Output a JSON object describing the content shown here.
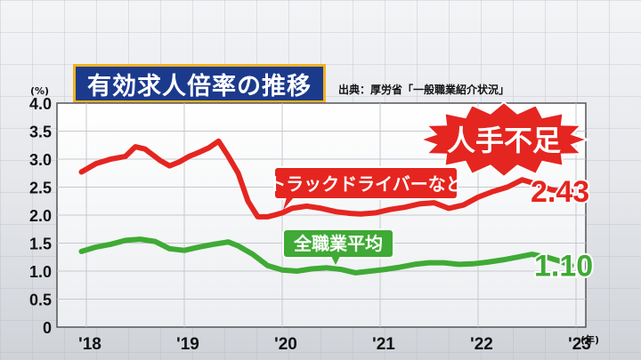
{
  "title": "有効求人倍率の推移",
  "source": "出典：厚労省「一般職業紹介状況」",
  "y_unit": "(%)",
  "x_unit": "(年)",
  "colors": {
    "title_bg": "#1c3a8c",
    "title_border": "#f2b321",
    "red": "#e52520",
    "green": "#3faa35"
  },
  "chart_data": {
    "type": "line",
    "title": "有効求人倍率の推移",
    "ylim": [
      0,
      4.0
    ],
    "xlim": [
      2017.7,
      2023.1
    ],
    "y_ticks": [
      "0",
      "0.5",
      "1.0",
      "1.5",
      "2.0",
      "2.5",
      "3.0",
      "3.5",
      "4.0"
    ],
    "y_tick_values": [
      0,
      0.5,
      1.0,
      1.5,
      2.0,
      2.5,
      3.0,
      3.5,
      4.0
    ],
    "x_ticks": [
      "'18",
      "'19",
      "'20",
      "'21",
      "'22",
      "'23"
    ],
    "x_tick_values": [
      2018,
      2019,
      2020,
      2021,
      2022,
      2023
    ],
    "grid": true,
    "badge": "人手不足",
    "series": [
      {
        "name": "トラックドライバーなど",
        "color": "#e52520",
        "end_label": "2.43",
        "x": [
          2017.95,
          2018.1,
          2018.25,
          2018.4,
          2018.5,
          2018.6,
          2018.75,
          2018.85,
          2018.95,
          2019.05,
          2019.15,
          2019.25,
          2019.35,
          2019.45,
          2019.55,
          2019.65,
          2019.75,
          2019.85,
          2019.92,
          2020.0,
          2020.1,
          2020.25,
          2020.4,
          2020.55,
          2020.7,
          2020.8,
          2020.95,
          2021.1,
          2021.25,
          2021.4,
          2021.55,
          2021.7,
          2021.85,
          2022.0,
          2022.15,
          2022.3,
          2022.45,
          2022.55,
          2022.65,
          2022.75,
          2022.85,
          2022.95
        ],
        "values": [
          2.77,
          2.92,
          3.0,
          3.05,
          3.22,
          3.18,
          2.98,
          2.88,
          2.95,
          3.05,
          3.12,
          3.2,
          3.32,
          3.05,
          2.75,
          2.25,
          1.97,
          1.97,
          2.0,
          2.04,
          2.12,
          2.16,
          2.12,
          2.06,
          2.03,
          2.02,
          2.04,
          2.1,
          2.14,
          2.2,
          2.22,
          2.12,
          2.18,
          2.32,
          2.42,
          2.5,
          2.63,
          2.58,
          2.52,
          2.45,
          2.43,
          2.43
        ]
      },
      {
        "name": "全職業平均",
        "color": "#3faa35",
        "end_label": "1.10",
        "x": [
          2017.95,
          2018.1,
          2018.25,
          2018.4,
          2018.55,
          2018.7,
          2018.85,
          2019.0,
          2019.15,
          2019.3,
          2019.45,
          2019.55,
          2019.7,
          2019.85,
          2020.0,
          2020.15,
          2020.3,
          2020.45,
          2020.6,
          2020.75,
          2020.9,
          2021.05,
          2021.2,
          2021.35,
          2021.5,
          2021.65,
          2021.8,
          2021.95,
          2022.1,
          2022.25,
          2022.4,
          2022.55,
          2022.7,
          2022.85,
          2022.95
        ],
        "values": [
          1.35,
          1.43,
          1.48,
          1.55,
          1.57,
          1.53,
          1.4,
          1.37,
          1.43,
          1.48,
          1.52,
          1.45,
          1.3,
          1.1,
          1.02,
          1.0,
          1.04,
          1.06,
          1.03,
          0.97,
          1.0,
          1.03,
          1.07,
          1.12,
          1.15,
          1.15,
          1.12,
          1.13,
          1.16,
          1.2,
          1.25,
          1.3,
          1.25,
          1.17,
          1.1
        ]
      }
    ]
  }
}
